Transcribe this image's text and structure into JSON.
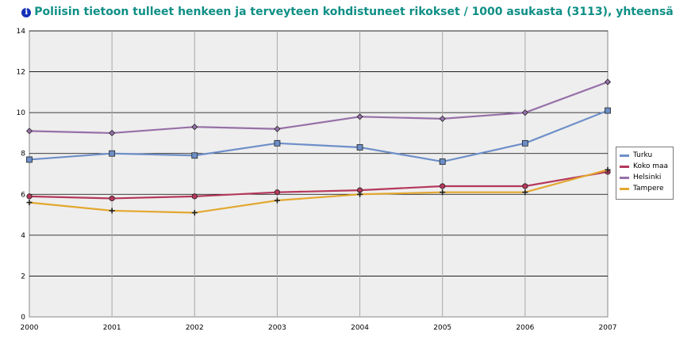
{
  "title": "Poliisin tietoon tulleet henkeen ja terveyteen kohdistuneet rikokset / 1000 asukasta (3113), yhteensä",
  "chart_data": {
    "type": "line",
    "title": "Poliisin tietoon tulleet henkeen ja terveyteen kohdistuneet rikokset / 1000 asukasta (3113), yhteensä",
    "x": [
      "2000",
      "2001",
      "2002",
      "2003",
      "2004",
      "2005",
      "2006",
      "2007"
    ],
    "yticks": [
      0,
      2,
      4,
      6,
      8,
      10,
      12,
      14
    ],
    "ylim": [
      0,
      14
    ],
    "grid": true,
    "legend_position": "right",
    "series": [
      {
        "name": "Turku",
        "color": "#6d8fc8",
        "marker": "square",
        "values": [
          7.7,
          8.0,
          7.9,
          8.5,
          8.3,
          7.6,
          8.5,
          10.1
        ]
      },
      {
        "name": "Koko maa",
        "color": "#b5385c",
        "marker": "circle",
        "values": [
          5.9,
          5.8,
          5.9,
          6.1,
          6.2,
          6.4,
          6.4,
          7.1
        ]
      },
      {
        "name": "Helsinki",
        "color": "#9670a8",
        "marker": "diamond",
        "values": [
          9.1,
          9.0,
          9.3,
          9.2,
          9.8,
          9.7,
          10.0,
          11.5
        ]
      },
      {
        "name": "Tampere",
        "color": "#e3a72f",
        "marker": "cross",
        "values": [
          5.6,
          5.2,
          5.1,
          5.7,
          6.0,
          6.1,
          6.1,
          7.2
        ]
      }
    ]
  }
}
